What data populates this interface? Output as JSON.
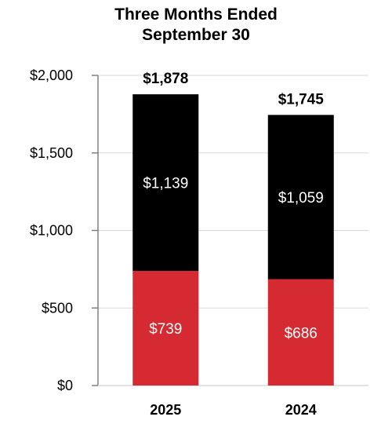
{
  "chart_data": {
    "type": "bar",
    "stacked": true,
    "title_lines": [
      "Three Months Ended",
      "September 30"
    ],
    "categories": [
      "2025",
      "2024"
    ],
    "series": [
      {
        "values": [
          739,
          686
        ],
        "labels": [
          "$739",
          "$686"
        ],
        "color": "#d62a32"
      },
      {
        "values": [
          1139,
          1059
        ],
        "labels": [
          "$1,139",
          "$1,059"
        ],
        "color": "#000000"
      }
    ],
    "totals": [
      1878,
      1745
    ],
    "total_labels": [
      "$1,878",
      "$1,745"
    ],
    "y_ticks": [
      0,
      500,
      1000,
      1500,
      2000
    ],
    "y_tick_labels": [
      "$0",
      "$500",
      "$1,000",
      "$1,500",
      "$2,000"
    ],
    "ylim": [
      0,
      2000
    ],
    "grid": true,
    "xlabel": "",
    "ylabel": ""
  }
}
